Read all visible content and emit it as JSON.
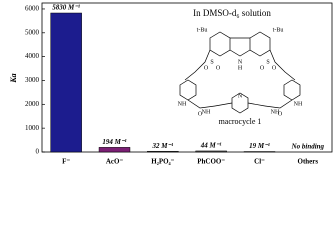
{
  "chart_data": {
    "type": "bar",
    "annotation": "In DMSO-d₆ solution",
    "structure_name": "macrocycle 1",
    "structure_labels": [
      "t-Bu",
      "t-Bu",
      "N",
      "H",
      "S",
      "S",
      "O",
      "O",
      "O",
      "O",
      "NH",
      "NH",
      "NH",
      "NH",
      "N",
      "O",
      "O"
    ],
    "y_label": "Ka",
    "categories": [
      "F⁻",
      "AcO⁻",
      "H₂PO₄⁻",
      "PhCOO⁻",
      "Cl⁻",
      "Others"
    ],
    "values": [
      5830,
      194,
      32,
      44,
      19,
      null
    ],
    "value_labels": [
      "5830 M⁻¹",
      "194 M⁻¹",
      "32 M⁻¹",
      "44 M⁻¹",
      "19 M⁻¹",
      "No binding"
    ],
    "colors": [
      "#1c1c8e",
      "#7b1f74",
      "#555555",
      "#555555",
      "#555555",
      "#555555"
    ],
    "ylim": [
      0,
      6250
    ],
    "yticks": [
      0,
      1000,
      2000,
      3000,
      4000,
      5000,
      6000
    ]
  }
}
